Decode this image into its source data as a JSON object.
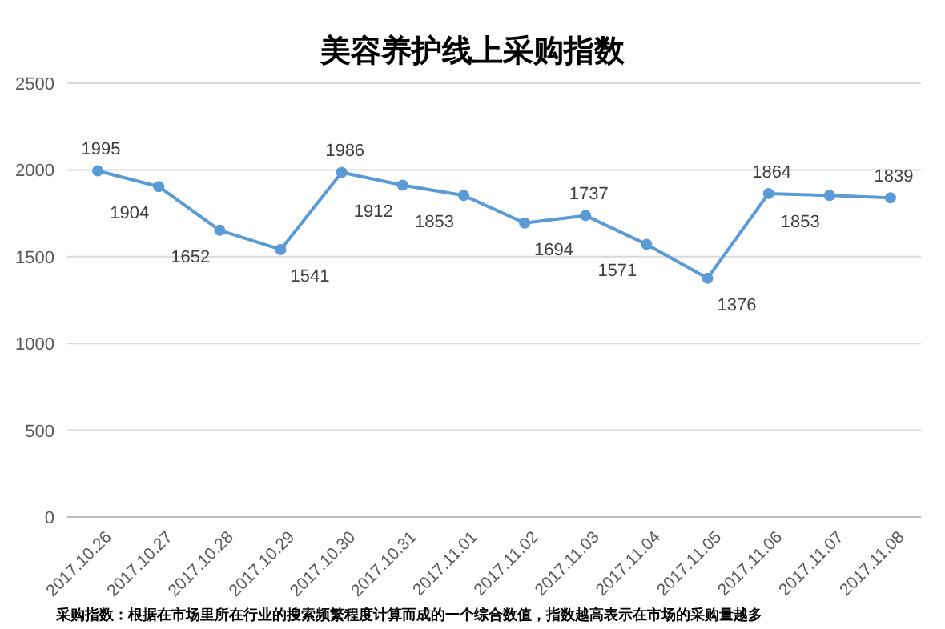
{
  "chart_data": {
    "type": "line",
    "title": "美容养护线上采购指数",
    "categories": [
      "2017.10.26",
      "2017.10.27",
      "2017.10.28",
      "2017.10.29",
      "2017.10.30",
      "2017.10.31",
      "2017.11.01",
      "2017.11.02",
      "2017.11.03",
      "2017.11.04",
      "2017.11.05",
      "2017.11.06",
      "2017.11.07",
      "2017.11.08"
    ],
    "values": [
      1995,
      1904,
      1652,
      1541,
      1986,
      1912,
      1853,
      1694,
      1737,
      1571,
      1376,
      1864,
      1853,
      1839
    ],
    "color": "#5b9bd5",
    "ylim": [
      0,
      2500
    ],
    "yticks": [
      0,
      500,
      1000,
      1500,
      2000,
      2500
    ],
    "grid": "y",
    "marker": "circle",
    "data_labels": true,
    "annotations": [
      "采购指数：根据在市场里所在行业的搜索频繁程度计算而成的一个综合数值，指数越高表示在市场的采购量越多"
    ]
  }
}
